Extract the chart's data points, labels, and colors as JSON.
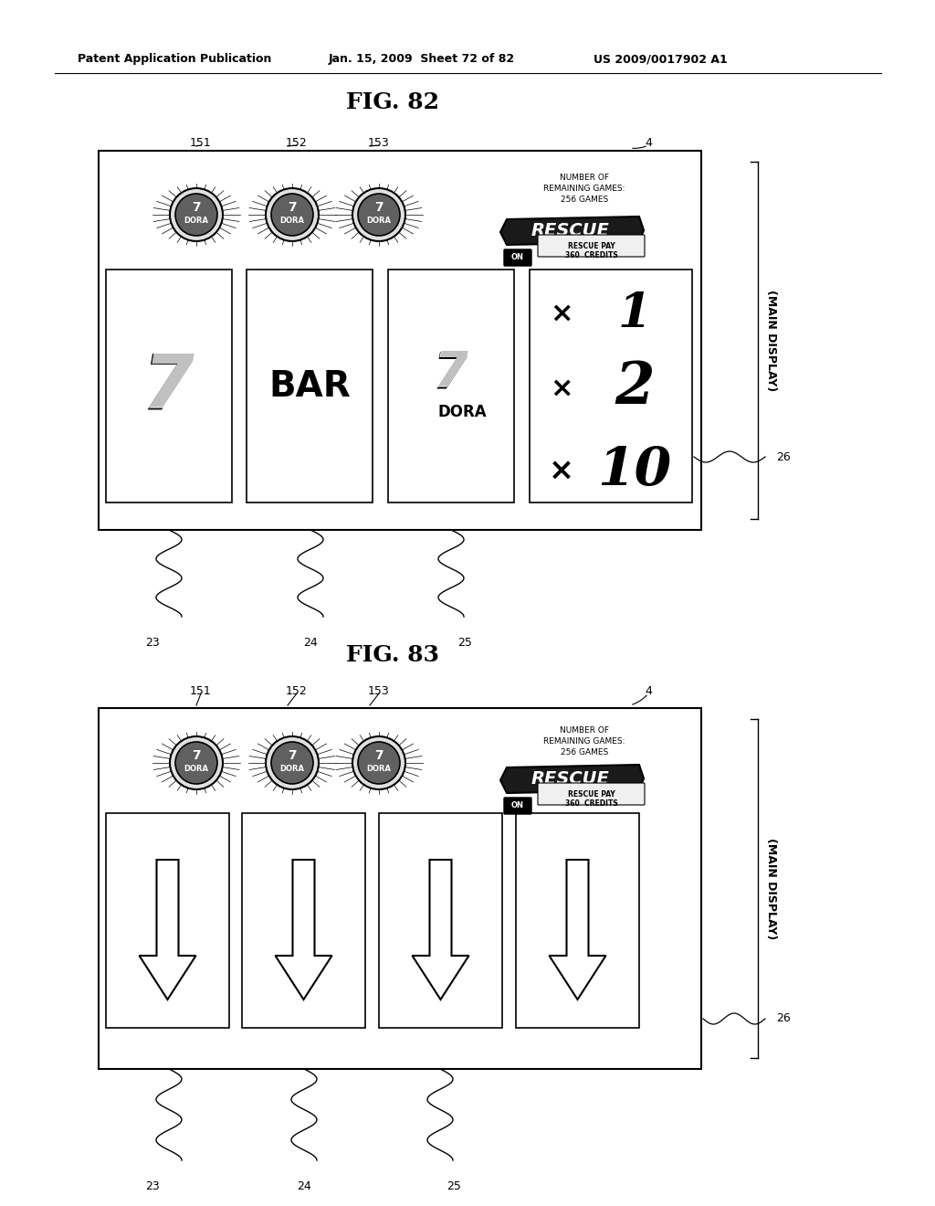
{
  "bg_color": "#ffffff",
  "header_left": "Patent Application Publication",
  "header_mid": "Jan. 15, 2009  Sheet 72 of 82",
  "header_right": "US 2009/0017902 A1",
  "fig1_title": "FIG. 82",
  "fig2_title": "FIG. 83",
  "label_151": "151",
  "label_152": "152",
  "label_153": "153",
  "label_4": "4",
  "label_23": "23",
  "label_24": "24",
  "label_25": "25",
  "label_26": "26",
  "main_display_text": "(MAIN DISPLAY)",
  "number_remaining": "NUMBER OF\nREMAINING GAMES:\n256 GAMES",
  "rescue_pay": "RESCUE PAY\n360  CREDITS",
  "multipliers": [
    "× 1",
    "× 2",
    "×10"
  ],
  "slot_labels": [
    "7",
    "BAR",
    "7DORA"
  ]
}
